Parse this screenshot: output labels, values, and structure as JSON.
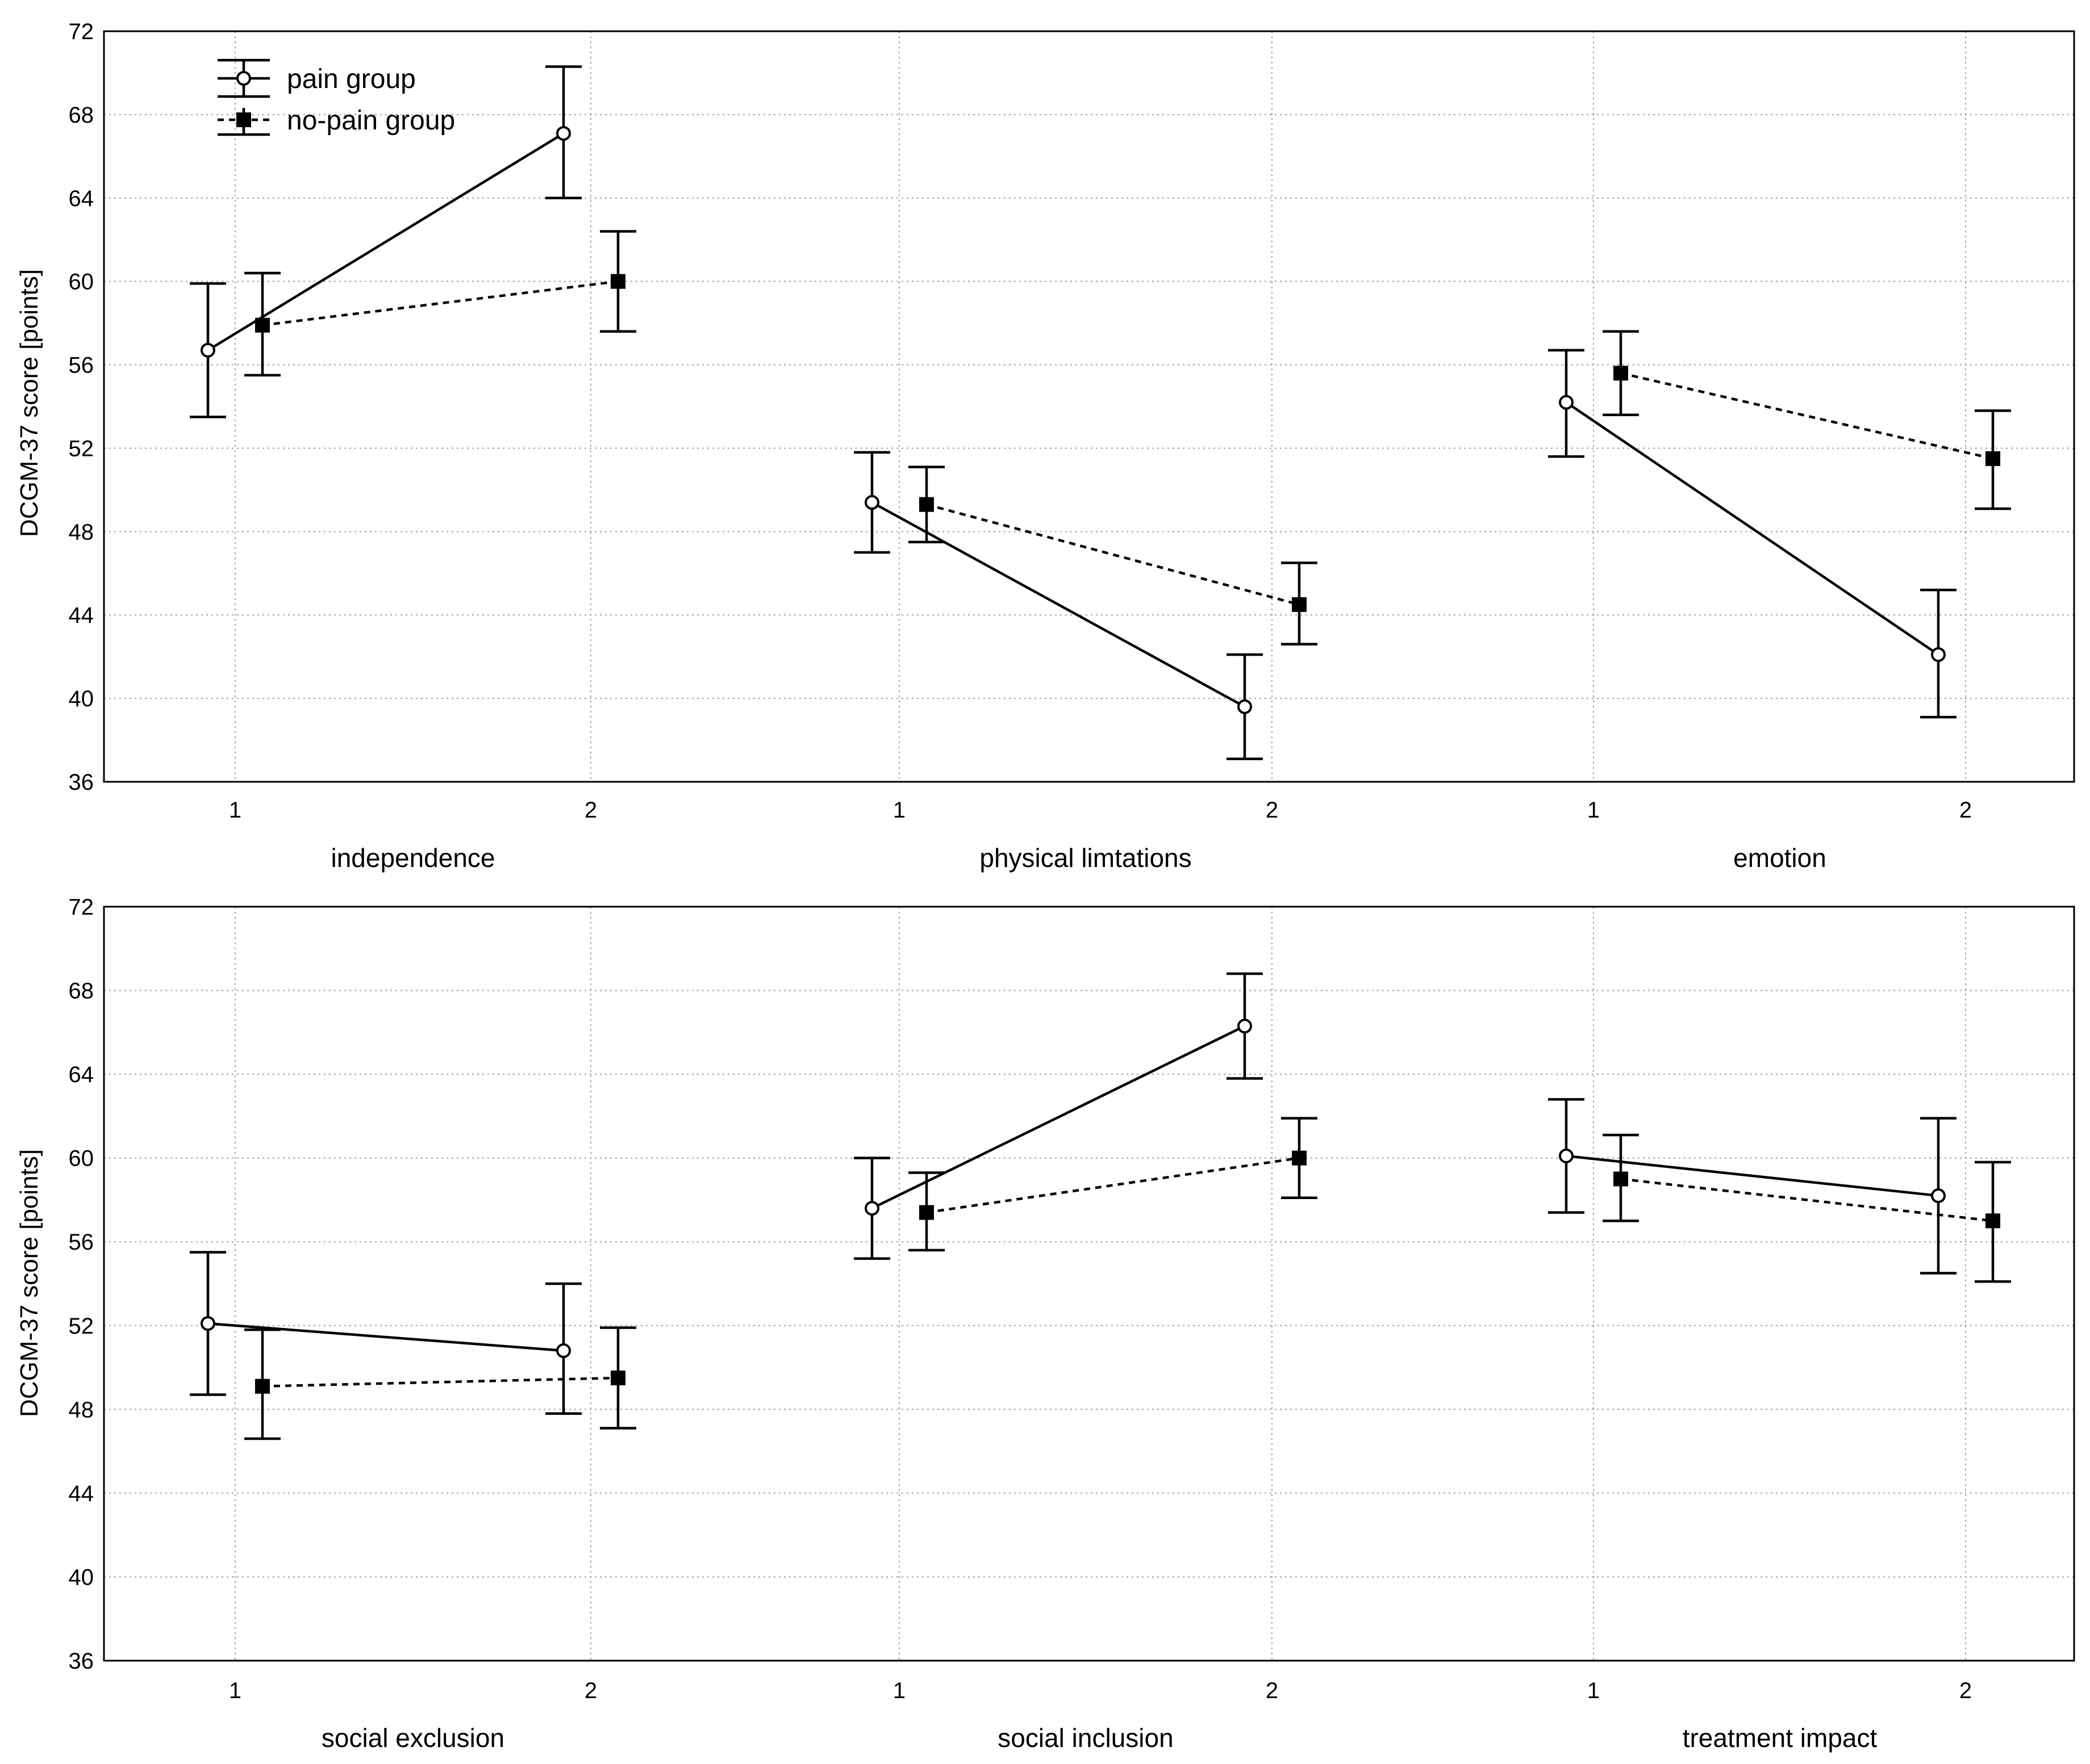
{
  "chart_data": [
    {
      "type": "line",
      "row": "top",
      "ylabel": "DCGM-37 score [points]",
      "ylim": [
        36,
        72
      ],
      "yticks": [
        36,
        40,
        44,
        48,
        52,
        56,
        60,
        64,
        68,
        72
      ],
      "grid": true,
      "legend": {
        "placement": "top-left",
        "entries": [
          {
            "name": "pain group",
            "marker": "open-circle",
            "line": "solid"
          },
          {
            "name": "no-pain group",
            "marker": "filled-square",
            "line": "dashed"
          }
        ]
      },
      "panels": [
        {
          "xlabel": "independence",
          "categories": [
            "1",
            "2"
          ],
          "series": [
            {
              "name": "pain group",
              "values": [
                56.7,
                67.1
              ],
              "lower": [
                53.5,
                64.0
              ],
              "upper": [
                59.9,
                70.3
              ]
            },
            {
              "name": "no-pain group",
              "values": [
                57.9,
                60.0
              ],
              "lower": [
                55.5,
                57.6
              ],
              "upper": [
                60.4,
                62.4
              ]
            }
          ]
        },
        {
          "xlabel": "physical limtations",
          "categories": [
            "1",
            "2"
          ],
          "series": [
            {
              "name": "pain group",
              "values": [
                49.4,
                39.6
              ],
              "lower": [
                47.0,
                37.1
              ],
              "upper": [
                51.8,
                42.1
              ]
            },
            {
              "name": "no-pain group",
              "values": [
                49.3,
                44.5
              ],
              "lower": [
                47.5,
                42.6
              ],
              "upper": [
                51.1,
                46.5
              ]
            }
          ]
        },
        {
          "xlabel": "emotion",
          "categories": [
            "1",
            "2"
          ],
          "series": [
            {
              "name": "pain group",
              "values": [
                54.2,
                42.1
              ],
              "lower": [
                51.6,
                39.1
              ],
              "upper": [
                56.7,
                45.2
              ]
            },
            {
              "name": "no-pain group",
              "values": [
                55.6,
                51.5
              ],
              "lower": [
                53.6,
                49.1
              ],
              "upper": [
                57.6,
                53.8
              ]
            }
          ]
        }
      ]
    },
    {
      "type": "line",
      "row": "bottom",
      "ylabel": "DCGM-37 score [points]",
      "ylim": [
        36,
        72
      ],
      "yticks": [
        36,
        40,
        44,
        48,
        52,
        56,
        60,
        64,
        68,
        72
      ],
      "grid": true,
      "panels": [
        {
          "xlabel": "social exclusion",
          "categories": [
            "1",
            "2"
          ],
          "series": [
            {
              "name": "pain group",
              "values": [
                52.1,
                50.8
              ],
              "lower": [
                48.7,
                47.8
              ],
              "upper": [
                55.5,
                54.0
              ]
            },
            {
              "name": "no-pain group",
              "values": [
                49.1,
                49.5
              ],
              "lower": [
                46.6,
                47.1
              ],
              "upper": [
                51.8,
                51.9
              ]
            }
          ]
        },
        {
          "xlabel": "social inclusion",
          "categories": [
            "1",
            "2"
          ],
          "series": [
            {
              "name": "pain group",
              "values": [
                57.6,
                66.3
              ],
              "lower": [
                55.2,
                63.8
              ],
              "upper": [
                60.0,
                68.8
              ]
            },
            {
              "name": "no-pain group",
              "values": [
                57.4,
                60.0
              ],
              "lower": [
                55.6,
                58.1
              ],
              "upper": [
                59.3,
                61.9
              ]
            }
          ]
        },
        {
          "xlabel": "treatment impact",
          "categories": [
            "1",
            "2"
          ],
          "series": [
            {
              "name": "pain group",
              "values": [
                60.1,
                58.2
              ],
              "lower": [
                57.4,
                54.5
              ],
              "upper": [
                62.8,
                61.9
              ]
            },
            {
              "name": "no-pain group",
              "values": [
                59.0,
                57.0
              ],
              "lower": [
                57.0,
                54.1
              ],
              "upper": [
                61.1,
                59.8
              ]
            }
          ]
        }
      ]
    }
  ]
}
